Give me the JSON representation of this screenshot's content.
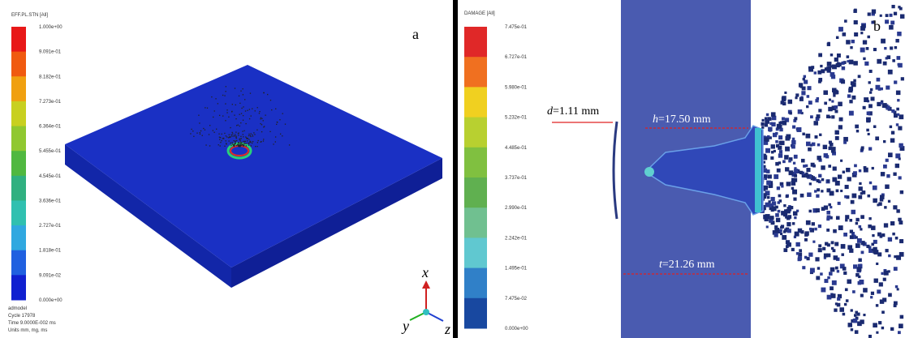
{
  "panel_a": {
    "label": "a",
    "legend_title": "EFF.PL.STN [All]",
    "legend_labels": [
      "1.000e+00",
      "9.091e-01",
      "8.182e-01",
      "7.273e-01",
      "6.364e-01",
      "5.455e-01",
      "4.545e-01",
      "3.636e-01",
      "2.727e-01",
      "1.818e-01",
      "9.091e-02",
      "0.000e+00"
    ],
    "footer": [
      "admodel",
      "Cycle 17978",
      "Time 9.0000E-002 ms",
      "Units mm, mg, ms"
    ],
    "axes": {
      "x": "x",
      "y": "y",
      "z": "z"
    }
  },
  "panel_b": {
    "label": "b",
    "legend_title": "DAMAGE [All]",
    "legend_labels": [
      "7.475e-01",
      "6.727e-01",
      "5.980e-01",
      "5.232e-01",
      "4.485e-01",
      "3.737e-01",
      "2.990e-01",
      "2.242e-01",
      "1.495e-01",
      "7.475e-02",
      "0.000e+00"
    ],
    "annotations": {
      "d": "d",
      "d_value": "=1.11 mm",
      "h": "h",
      "h_value": "=17.50 mm",
      "t": "t",
      "t_value": "=21.26 mm"
    }
  }
}
